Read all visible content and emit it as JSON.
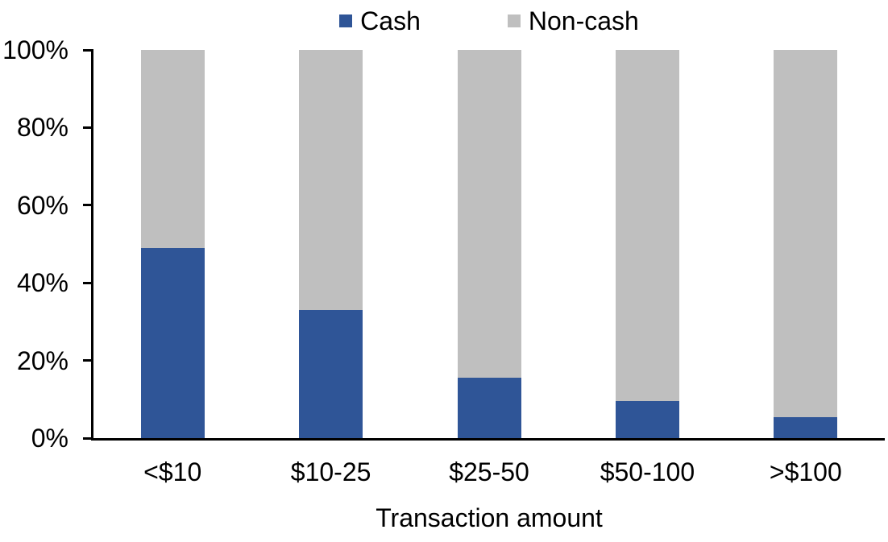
{
  "chart_data": {
    "type": "bar",
    "stacked": true,
    "title": "",
    "xlabel": "Transaction amount",
    "ylabel": "",
    "categories": [
      "<$10",
      "$10-25",
      "$25-50",
      "$50-100",
      ">$100"
    ],
    "series": [
      {
        "name": "Cash",
        "color": "#2F5597",
        "values": [
          49,
          33,
          15.5,
          9.5,
          5.5
        ]
      },
      {
        "name": "Non-cash",
        "color": "#BFBFBF",
        "values": [
          51,
          67,
          84.5,
          90.5,
          94.5
        ]
      }
    ],
    "y_ticks": [
      "0%",
      "20%",
      "40%",
      "60%",
      "80%",
      "100%"
    ],
    "ylim": [
      0,
      100
    ],
    "legend_position": "top",
    "grid": false
  },
  "colors": {
    "cash": "#2F5597",
    "noncash": "#BFBFBF",
    "axis": "#000000",
    "background": "#FFFFFF",
    "text": "#000000"
  }
}
